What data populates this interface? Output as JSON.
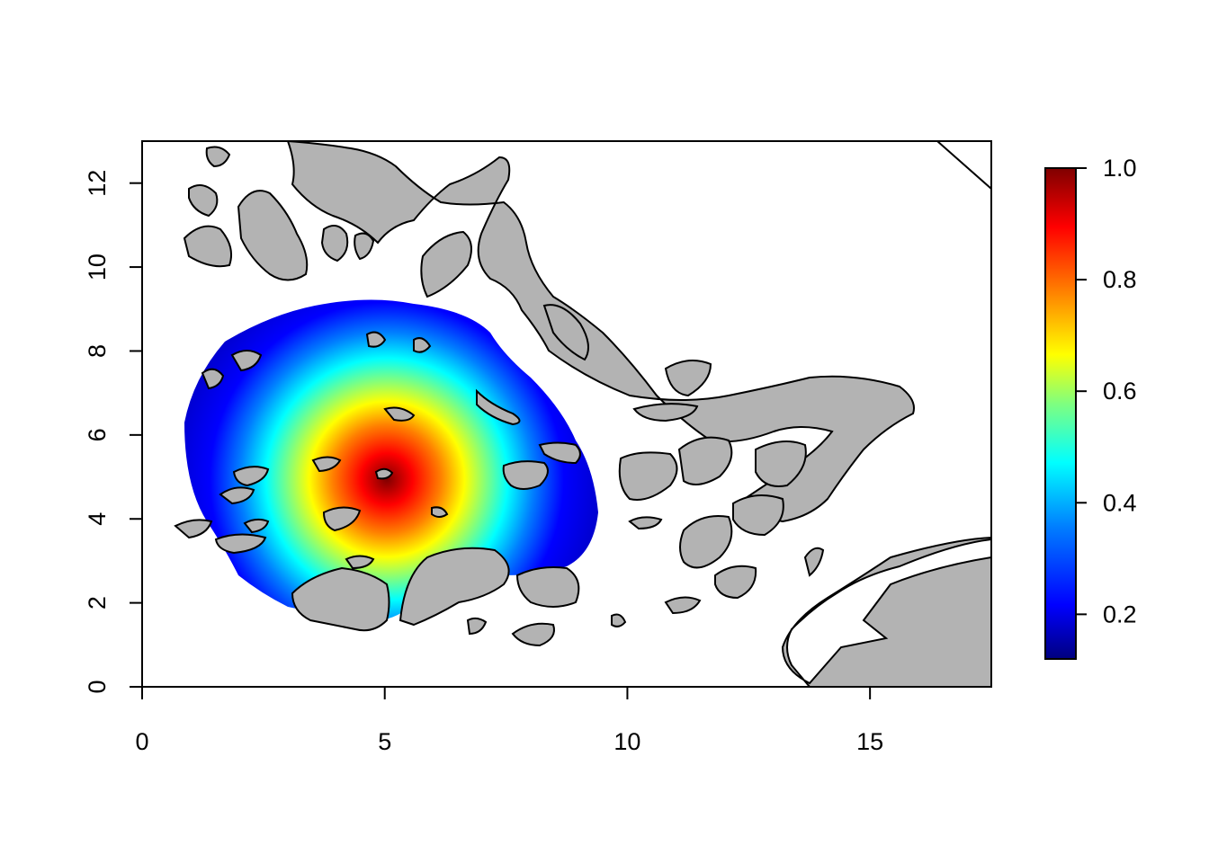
{
  "map": {
    "xlim": [
      0,
      17.5
    ],
    "ylim": [
      0,
      13
    ],
    "x_ticks": [
      0,
      5,
      10,
      15
    ],
    "y_ticks": [
      0,
      2,
      4,
      6,
      8,
      10,
      12
    ],
    "x_tick_labels": [
      "0",
      "5",
      "10",
      "15"
    ],
    "y_tick_labels": [
      "0",
      "2",
      "4",
      "6",
      "8",
      "10",
      "12"
    ],
    "land_color": "#b3b3b3",
    "water_color": "#ffffff",
    "heat_center": {
      "x": 5.1,
      "y": 4.8
    },
    "heat_extent": {
      "x_min": 0.85,
      "x_max": 9.4,
      "y_min": 1.55,
      "y_max": 9.2
    },
    "peak_value": 1.0,
    "min_value": 0.12
  },
  "colorbar": {
    "min": 0.12,
    "max": 1.0,
    "ticks": [
      0.2,
      0.4,
      0.6,
      0.8,
      1.0
    ],
    "tick_labels": [
      "0.2",
      "0.4",
      "0.6",
      "0.8",
      "1.0"
    ],
    "palette": [
      "#00007f",
      "#0000ff",
      "#007fff",
      "#00ffff",
      "#7fff7f",
      "#ffff00",
      "#ff7f00",
      "#ff0000",
      "#7f0000"
    ]
  }
}
